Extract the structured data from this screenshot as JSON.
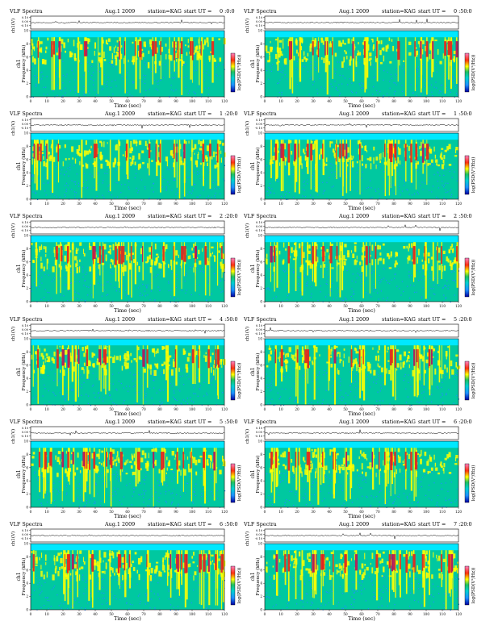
{
  "title_prefix": "VLF Spectra",
  "date": "Aug.1 2009",
  "station": "station=KAG",
  "start_label": "start  UT =",
  "x_label": "Time (sec)",
  "y_label_wave": "ch1(V)",
  "y_label_ch": "ch1",
  "y_label_spec": "Frequency (kHz)",
  "colorbar_label": "log(PSD(V²/Hz))",
  "colorbar_ticks": [
    "",
    "",
    "",
    ""
  ],
  "colors": {
    "background": "#00c8a0",
    "cold": "#1e90ff",
    "warm": "#ffff00",
    "hot": "#e02020",
    "hot_dark": "#b01060",
    "above_cutoff": "#00e8ff"
  },
  "chart_data": [
    {
      "type": "heatmap",
      "start_ut": "0 :0:0",
      "xlim": [
        0,
        120
      ],
      "ylim": [
        0,
        10
      ],
      "wave_ylim": [
        -0.1,
        0.1
      ],
      "x_ticks": [
        0,
        10,
        20,
        30,
        40,
        50,
        60,
        70,
        80,
        90,
        100,
        110,
        120
      ],
      "y_ticks": [
        0,
        2,
        4,
        6,
        8,
        10
      ],
      "wave_ticks": [
        "0.10",
        "0.00",
        "-0.10"
      ]
    },
    {
      "type": "heatmap",
      "start_ut": "0 :50:0",
      "xlim": [
        0,
        120
      ],
      "ylim": [
        0,
        10
      ],
      "wave_ylim": [
        -0.1,
        0.1
      ],
      "x_ticks": [
        0,
        10,
        20,
        30,
        40,
        50,
        60,
        70,
        80,
        90,
        100,
        110,
        120
      ],
      "y_ticks": [
        0,
        2,
        4,
        6,
        8,
        10
      ],
      "wave_ticks": [
        "0.10",
        "0.00",
        "-0.10"
      ]
    },
    {
      "type": "heatmap",
      "start_ut": "1 :20:0",
      "xlim": [
        0,
        120
      ],
      "ylim": [
        0,
        10
      ],
      "wave_ylim": [
        -0.1,
        0.1
      ],
      "x_ticks": [
        0,
        10,
        20,
        30,
        40,
        50,
        60,
        70,
        80,
        90,
        100,
        110,
        120
      ],
      "y_ticks": [
        0,
        2,
        4,
        6,
        8,
        10
      ],
      "wave_ticks": [
        "0.10",
        "0.00",
        "-0.10"
      ]
    },
    {
      "type": "heatmap",
      "start_ut": "1 :50:0",
      "xlim": [
        0,
        120
      ],
      "ylim": [
        0,
        10
      ],
      "wave_ylim": [
        -0.1,
        0.1
      ],
      "x_ticks": [
        0,
        10,
        20,
        30,
        40,
        50,
        60,
        70,
        80,
        90,
        100,
        110,
        120
      ],
      "y_ticks": [
        0,
        2,
        4,
        6,
        8,
        10
      ],
      "wave_ticks": [
        "0.10",
        "0.00",
        "-0.10"
      ]
    },
    {
      "type": "heatmap",
      "start_ut": "2 :20:0",
      "xlim": [
        0,
        120
      ],
      "ylim": [
        0,
        10
      ],
      "wave_ylim": [
        -0.1,
        0.1
      ],
      "x_ticks": [
        0,
        10,
        20,
        30,
        40,
        50,
        60,
        70,
        80,
        90,
        100,
        110,
        120
      ],
      "y_ticks": [
        0,
        2,
        4,
        6,
        8,
        10
      ],
      "wave_ticks": [
        "0.10",
        "0.00",
        "-0.10"
      ]
    },
    {
      "type": "heatmap",
      "start_ut": "2 :50:0",
      "xlim": [
        0,
        120
      ],
      "ylim": [
        0,
        10
      ],
      "wave_ylim": [
        -0.1,
        0.1
      ],
      "x_ticks": [
        0,
        10,
        20,
        30,
        40,
        50,
        60,
        70,
        80,
        90,
        100,
        110,
        120
      ],
      "y_ticks": [
        0,
        2,
        4,
        6,
        8,
        10
      ],
      "wave_ticks": [
        "0.10",
        "0.00",
        "-0.10"
      ]
    },
    {
      "type": "heatmap",
      "start_ut": "4 :50:0",
      "xlim": [
        0,
        120
      ],
      "ylim": [
        0,
        10
      ],
      "wave_ylim": [
        -0.1,
        0.1
      ],
      "x_ticks": [
        0,
        10,
        20,
        30,
        40,
        50,
        60,
        70,
        80,
        90,
        100,
        110,
        120
      ],
      "y_ticks": [
        0,
        2,
        4,
        6,
        8,
        10
      ],
      "wave_ticks": [
        "0.10",
        "0.00",
        "-0.10"
      ]
    },
    {
      "type": "heatmap",
      "start_ut": "5 :20:0",
      "xlim": [
        0,
        120
      ],
      "ylim": [
        0,
        10
      ],
      "wave_ylim": [
        -0.1,
        0.1
      ],
      "x_ticks": [
        0,
        10,
        20,
        30,
        40,
        50,
        60,
        70,
        80,
        90,
        100,
        110,
        120
      ],
      "y_ticks": [
        0,
        2,
        4,
        6,
        8,
        10
      ],
      "wave_ticks": [
        "0.10",
        "0.00",
        "-0.10"
      ]
    },
    {
      "type": "heatmap",
      "start_ut": "5 :50:0",
      "xlim": [
        0,
        120
      ],
      "ylim": [
        0,
        10
      ],
      "wave_ylim": [
        -0.1,
        0.1
      ],
      "x_ticks": [
        0,
        10,
        20,
        30,
        40,
        50,
        60,
        70,
        80,
        90,
        100,
        110,
        120
      ],
      "y_ticks": [
        0,
        2,
        4,
        6,
        8,
        10
      ],
      "wave_ticks": [
        "0.10",
        "0.00",
        "-0.10"
      ]
    },
    {
      "type": "heatmap",
      "start_ut": "6 :20:0",
      "xlim": [
        0,
        120
      ],
      "ylim": [
        0,
        10
      ],
      "wave_ylim": [
        -0.1,
        0.1
      ],
      "x_ticks": [
        0,
        10,
        20,
        30,
        40,
        50,
        60,
        70,
        80,
        90,
        100,
        110,
        120
      ],
      "y_ticks": [
        0,
        2,
        4,
        6,
        8,
        10
      ],
      "wave_ticks": [
        "0.10",
        "0.00",
        "-0.10"
      ]
    },
    {
      "type": "heatmap",
      "start_ut": "6 :50:0",
      "xlim": [
        0,
        120
      ],
      "ylim": [
        0,
        10
      ],
      "wave_ylim": [
        -0.1,
        0.1
      ],
      "x_ticks": [
        0,
        10,
        20,
        30,
        40,
        50,
        60,
        70,
        80,
        90,
        100,
        110,
        120
      ],
      "y_ticks": [
        0,
        2,
        4,
        6,
        8,
        10
      ],
      "wave_ticks": [
        "0.10",
        "0.00",
        "-0.10"
      ]
    },
    {
      "type": "heatmap",
      "start_ut": "7 :20:0",
      "xlim": [
        0,
        120
      ],
      "ylim": [
        0,
        10
      ],
      "wave_ylim": [
        -0.1,
        0.1
      ],
      "x_ticks": [
        0,
        10,
        20,
        30,
        40,
        50,
        60,
        70,
        80,
        90,
        100,
        110,
        120
      ],
      "y_ticks": [
        0,
        2,
        4,
        6,
        8,
        10
      ],
      "wave_ticks": [
        "0.10",
        "0.00",
        "-0.10"
      ]
    }
  ]
}
